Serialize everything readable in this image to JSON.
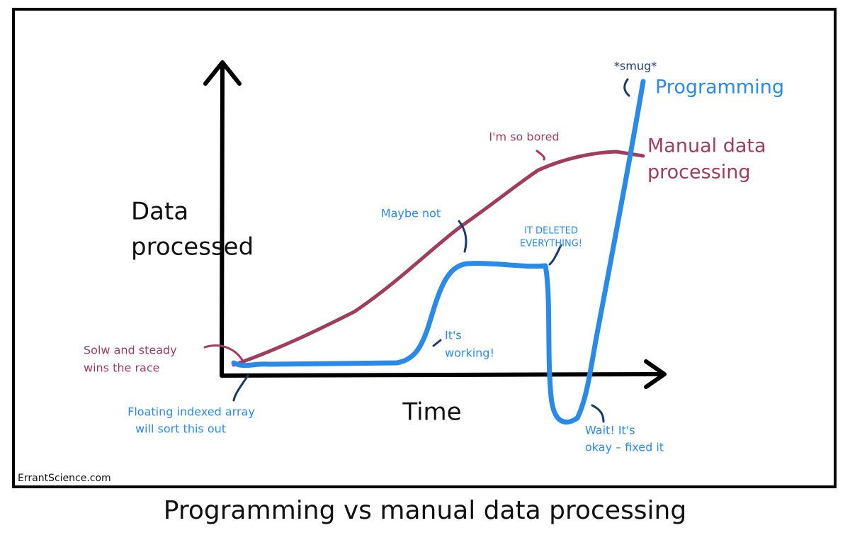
{
  "title": "Programming vs manual data processing",
  "credit": "ErrantScience.com",
  "axes": {
    "y_label": [
      "Data",
      "processed"
    ],
    "x_label": "Time"
  },
  "series": {
    "programming": {
      "label": "Programming",
      "note": "*smug*"
    },
    "manual": {
      "label": [
        "Manual data",
        "processing"
      ]
    }
  },
  "annotations": {
    "slow_steady": [
      "Solw and steady",
      "wins the race"
    ],
    "floating": [
      "Floating indexed array",
      "will sort this out"
    ],
    "working": [
      "It's",
      "working!"
    ],
    "maybe_not": "Maybe not",
    "deleted": [
      "IT DELETED",
      "EVERYTHING!"
    ],
    "bored": "I'm so bored",
    "fixed": [
      "Wait! It's",
      "okay – fixed it"
    ]
  }
}
